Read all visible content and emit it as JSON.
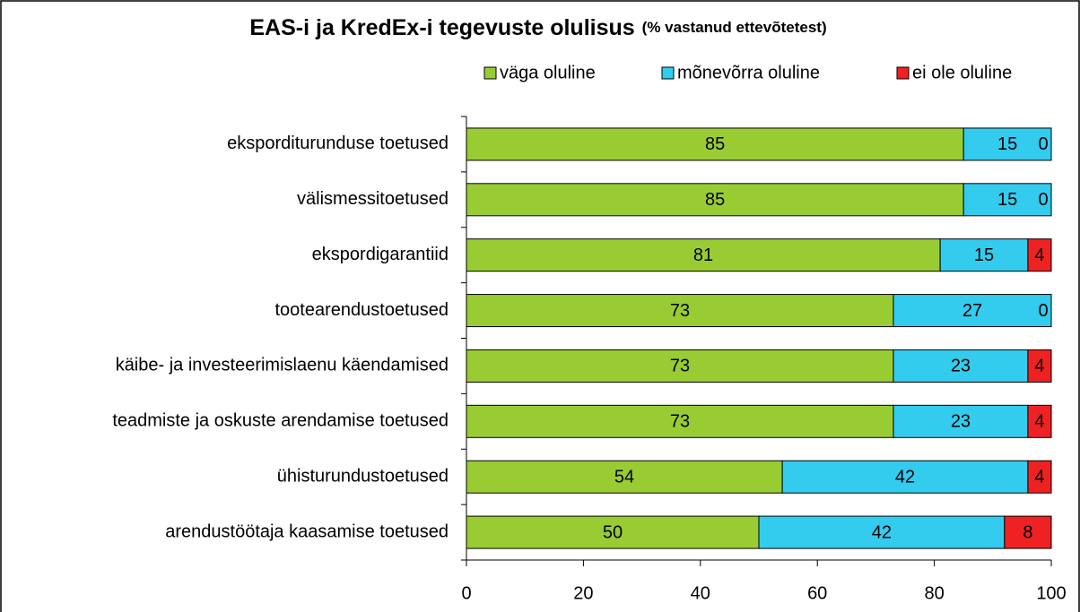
{
  "chart_data": {
    "type": "stacked_bar_horizontal",
    "title": "EAS-i ja KredEx-i tegevuste olulisus",
    "subtitle": "(% vastanud ettevõtetest)",
    "categories": [
      "eksporditurunduse toetused",
      "välismessitoetused",
      "ekspordigarantiid",
      "tootearendustoetused",
      "käibe- ja investeerimislaenu käendamised",
      "teadmiste ja oskuste arendamise toetused",
      "ühisturundustoetused",
      "arendustöötaja kaasamise toetused"
    ],
    "series": [
      {
        "name": "väga oluline",
        "color": "#99cc33",
        "values": [
          85,
          85,
          81,
          73,
          73,
          73,
          54,
          50
        ]
      },
      {
        "name": "mõnevõrra oluline",
        "color": "#33ccee",
        "values": [
          15,
          15,
          15,
          27,
          23,
          23,
          42,
          42
        ]
      },
      {
        "name": "ei ole oluline",
        "color": "#ee2222",
        "values": [
          0,
          0,
          4,
          0,
          4,
          4,
          4,
          8
        ]
      }
    ],
    "xlim": [
      0,
      100
    ],
    "xticks": [
      0,
      20,
      40,
      60,
      80,
      100
    ],
    "legend": "top"
  }
}
